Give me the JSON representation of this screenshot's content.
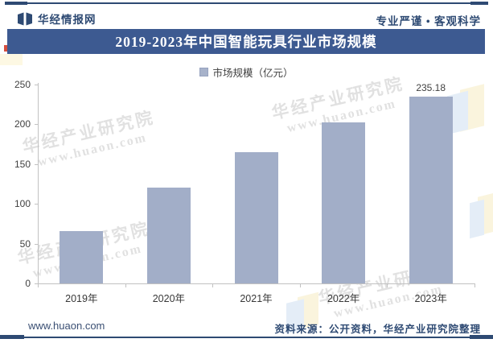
{
  "header": {
    "brand": "华经情报网",
    "slogan": "专业严谨 • 客观科学"
  },
  "title": "2019-2023年中国智能玩具行业市场规模",
  "legend": {
    "label": "市场规模（亿元）",
    "marker_color": "#a7b2ca"
  },
  "chart_data": {
    "type": "bar",
    "title": "2019-2023年中国智能玩具行业市场规模",
    "categories": [
      "2019年",
      "2020年",
      "2021年",
      "2022年",
      "2023年"
    ],
    "values": [
      66,
      120,
      165,
      202,
      235.18
    ],
    "value_labels": [
      null,
      null,
      null,
      null,
      "235.18"
    ],
    "series_name": "市场规模（亿元）",
    "ylabel": "",
    "xlabel": "",
    "ylim": [
      0,
      250
    ],
    "yticks": [
      0,
      50,
      100,
      150,
      200,
      250
    ],
    "grid": false,
    "legend_position": "top-center",
    "bar_color": "#a2aec8"
  },
  "watermarks": {
    "line1": "华经产业研究院",
    "line2": "www.huaon.com"
  },
  "footer": {
    "site": "www.huaon.com",
    "source": "资料来源：公开资料，华经产业研究院整理"
  }
}
